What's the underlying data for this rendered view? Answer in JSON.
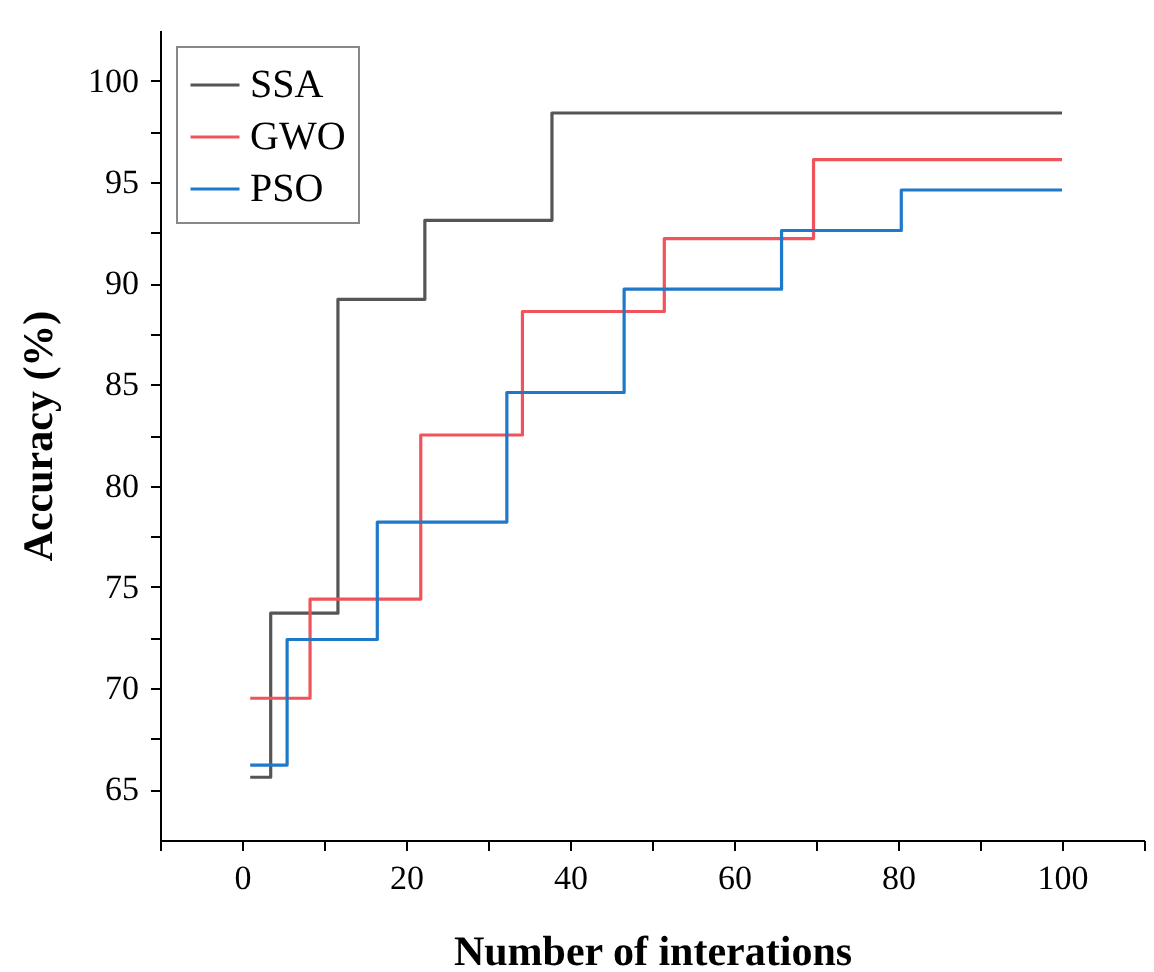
{
  "chart_data": {
    "type": "step",
    "xlabel": "Number of interations",
    "ylabel": "Accuracy (%)",
    "xlim": [
      -10,
      110
    ],
    "ylim": [
      62.5,
      102.5
    ],
    "xticks": [
      {
        "value": -10,
        "label": null
      },
      0,
      {
        "value": 10,
        "label": null
      },
      20,
      {
        "value": 30,
        "label": null
      },
      40,
      {
        "value": 50,
        "label": null
      },
      60,
      {
        "value": 70,
        "label": null
      },
      80,
      {
        "value": 90,
        "label": null
      },
      100,
      {
        "value": 110,
        "label": null
      }
    ],
    "yticks": [
      65,
      {
        "value": 67.5,
        "label": null
      },
      70,
      {
        "value": 72.5,
        "label": null
      },
      75,
      {
        "value": 77.5,
        "label": null
      },
      80,
      {
        "value": 82.5,
        "label": null
      },
      85,
      {
        "value": 87.5,
        "label": null
      },
      90,
      {
        "value": 92.5,
        "label": null
      },
      95,
      {
        "value": 97.5,
        "label": null
      },
      100
    ],
    "grid": false,
    "legend": "top left",
    "line_style": "solid",
    "series": [
      {
        "name": "SSA",
        "color": "#555555",
        "x": [
          1,
          3.5,
          11.7,
          22.3,
          37.8,
          100
        ],
        "values": [
          65.6,
          73.7,
          89.2,
          93.1,
          98.4,
          98.4
        ]
      },
      {
        "name": "GWO",
        "color": "#f0545a",
        "x": [
          1,
          8.3,
          21.8,
          34.2,
          51.5,
          69.7,
          100
        ],
        "values": [
          69.5,
          74.4,
          82.5,
          88.6,
          92.2,
          96.1,
          96.1
        ]
      },
      {
        "name": "PSO",
        "color": "#1f78c8",
        "x": [
          1,
          5.5,
          16.5,
          32.3,
          46.6,
          65.8,
          80.4,
          100
        ],
        "values": [
          66.2,
          72.4,
          78.2,
          84.6,
          89.7,
          92.6,
          94.6,
          94.6
        ]
      }
    ]
  }
}
